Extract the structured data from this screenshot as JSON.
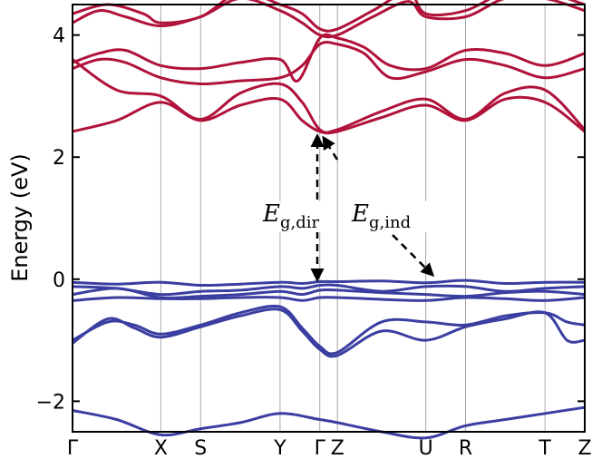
{
  "chart_data": {
    "type": "line",
    "title": "",
    "xlabel": "",
    "ylabel": "Energy (eV)",
    "ylim": [
      -2.5,
      4.5
    ],
    "yticks": [
      -2,
      0,
      2,
      4
    ],
    "ytick_labels": [
      "−2",
      "0",
      "2",
      "4"
    ],
    "kpath": [
      "Γ",
      "X",
      "S",
      "Y",
      "Γ",
      "Z",
      "U",
      "R",
      "T",
      "Z"
    ],
    "kpath_positions": [
      0.0,
      1.0,
      1.45,
      2.35,
      2.8,
      3.0,
      4.0,
      4.45,
      5.35,
      5.8
    ],
    "colors": {
      "conduction": "#b0123a",
      "valence": "#3a3ea0",
      "gridline": "#a8a8a8"
    },
    "series": [
      {
        "band": "conduction",
        "x": [
          0,
          0.5,
          1.0,
          1.45,
          1.9,
          2.35,
          2.6,
          2.8,
          3.0,
          3.5,
          4.0,
          4.45,
          4.9,
          5.35,
          5.8
        ],
        "y": [
          2.42,
          2.6,
          2.9,
          2.6,
          2.85,
          2.95,
          2.6,
          2.42,
          2.42,
          2.65,
          2.85,
          2.6,
          2.95,
          2.9,
          2.42
        ]
      },
      {
        "band": "conduction",
        "x": [
          0,
          0.5,
          1.0,
          1.45,
          1.9,
          2.35,
          2.6,
          2.8,
          3.0,
          3.5,
          4.0,
          4.45,
          4.9,
          5.35,
          5.8
        ],
        "y": [
          3.6,
          3.1,
          3.0,
          2.62,
          3.05,
          3.2,
          2.9,
          2.45,
          2.45,
          2.75,
          2.95,
          2.62,
          3.05,
          3.1,
          2.45
        ]
      },
      {
        "band": "conduction",
        "x": [
          0,
          0.3,
          0.6,
          1.0,
          1.45,
          1.9,
          2.35,
          2.6,
          2.8,
          3.0,
          3.3,
          3.6,
          4.0,
          4.45,
          4.9,
          5.35,
          5.8
        ],
        "y": [
          3.45,
          3.6,
          3.55,
          3.3,
          3.2,
          3.25,
          3.3,
          3.5,
          3.85,
          3.85,
          3.7,
          3.3,
          3.4,
          3.6,
          3.5,
          3.3,
          3.45
        ]
      },
      {
        "band": "conduction",
        "x": [
          0,
          0.3,
          0.6,
          1.0,
          1.45,
          1.9,
          2.35,
          2.55,
          2.8,
          3.0,
          3.3,
          3.6,
          4.0,
          4.45,
          4.9,
          5.35,
          5.8
        ],
        "y": [
          3.55,
          3.7,
          3.75,
          3.5,
          3.45,
          3.55,
          3.6,
          3.25,
          3.95,
          3.95,
          3.8,
          3.5,
          3.45,
          3.75,
          3.7,
          3.5,
          3.7
        ]
      },
      {
        "band": "conduction",
        "x": [
          0,
          0.3,
          0.6,
          1.0,
          1.45,
          1.9,
          2.35,
          2.6,
          2.8,
          3.0,
          3.4,
          3.8,
          4.0,
          4.45,
          4.9,
          5.35,
          5.8
        ],
        "y": [
          4.2,
          4.4,
          4.3,
          4.15,
          4.3,
          4.6,
          4.4,
          4.2,
          4.0,
          4.0,
          4.3,
          4.55,
          4.3,
          4.3,
          4.6,
          4.6,
          4.4
        ]
      },
      {
        "band": "conduction",
        "x": [
          0,
          0.4,
          0.8,
          1.0,
          1.45,
          1.9,
          2.35,
          2.6,
          2.8,
          3.0,
          3.4,
          3.8,
          4.0,
          4.45,
          4.9,
          5.35,
          5.8
        ],
        "y": [
          4.35,
          4.5,
          4.35,
          4.2,
          4.3,
          4.7,
          4.5,
          4.35,
          4.1,
          4.1,
          4.4,
          4.7,
          4.35,
          4.4,
          4.7,
          4.7,
          4.5
        ]
      },
      {
        "band": "valence",
        "x": [
          0,
          0.5,
          1.0,
          1.45,
          1.9,
          2.35,
          2.6,
          2.8,
          3.0,
          3.5,
          4.0,
          4.45,
          4.9,
          5.35,
          5.8
        ],
        "y": [
          -0.05,
          -0.08,
          -0.05,
          -0.1,
          -0.08,
          -0.05,
          -0.07,
          -0.04,
          -0.04,
          -0.03,
          -0.06,
          -0.02,
          -0.07,
          -0.05,
          -0.05
        ]
      },
      {
        "band": "valence",
        "x": [
          0,
          0.5,
          1.0,
          1.45,
          1.9,
          2.35,
          2.6,
          2.8,
          3.0,
          3.5,
          4.0,
          4.45,
          4.9,
          5.35,
          5.8
        ],
        "y": [
          -0.12,
          -0.15,
          -0.25,
          -0.2,
          -0.18,
          -0.12,
          -0.15,
          -0.1,
          -0.1,
          -0.2,
          -0.12,
          -0.12,
          -0.2,
          -0.15,
          -0.12
        ]
      },
      {
        "band": "valence",
        "x": [
          0,
          0.5,
          1.0,
          1.45,
          1.9,
          2.35,
          2.6,
          2.8,
          3.0,
          3.5,
          4.0,
          4.45,
          4.9,
          5.35,
          5.8
        ],
        "y": [
          -0.25,
          -0.15,
          -0.3,
          -0.28,
          -0.25,
          -0.2,
          -0.25,
          -0.18,
          -0.18,
          -0.22,
          -0.25,
          -0.28,
          -0.22,
          -0.2,
          -0.25
        ]
      },
      {
        "band": "valence",
        "x": [
          0,
          0.5,
          1.0,
          1.45,
          1.9,
          2.35,
          2.6,
          2.8,
          3.0,
          3.5,
          4.0,
          4.45,
          4.9,
          5.35,
          5.8
        ],
        "y": [
          -0.35,
          -0.3,
          -0.32,
          -0.32,
          -0.3,
          -0.3,
          -0.35,
          -0.3,
          -0.3,
          -0.33,
          -0.35,
          -0.3,
          -0.32,
          -0.35,
          -0.3
        ]
      },
      {
        "band": "valence",
        "x": [
          0,
          0.4,
          0.7,
          1.0,
          1.45,
          1.9,
          2.35,
          2.6,
          2.8,
          3.0,
          3.5,
          4.0,
          4.45,
          4.9,
          5.35,
          5.6,
          5.8
        ],
        "y": [
          -1.0,
          -0.7,
          -0.75,
          -0.9,
          -0.75,
          -0.55,
          -0.45,
          -0.8,
          -1.1,
          -1.2,
          -0.7,
          -0.7,
          -0.75,
          -0.6,
          -0.55,
          -0.7,
          -0.75
        ]
      },
      {
        "band": "valence",
        "x": [
          0,
          0.4,
          0.7,
          1.0,
          1.45,
          1.9,
          2.35,
          2.6,
          2.8,
          3.0,
          3.5,
          4.0,
          4.45,
          4.9,
          5.35,
          5.6,
          5.8
        ],
        "y": [
          -1.05,
          -0.65,
          -0.8,
          -0.95,
          -0.78,
          -0.6,
          -0.5,
          -0.85,
          -1.15,
          -1.25,
          -0.85,
          -1.0,
          -0.78,
          -0.65,
          -0.55,
          -1.0,
          -1.0
        ]
      },
      {
        "band": "valence",
        "x": [
          0,
          0.5,
          1.0,
          1.45,
          1.9,
          2.35,
          2.8,
          3.0,
          3.5,
          4.0,
          4.45,
          4.9,
          5.35,
          5.8
        ],
        "y": [
          -2.15,
          -2.3,
          -2.55,
          -2.45,
          -2.35,
          -2.2,
          -2.3,
          -2.35,
          -2.5,
          -2.6,
          -2.4,
          -2.3,
          -2.2,
          -2.1
        ]
      }
    ],
    "annotations": [
      {
        "main": "E",
        "sub": "g,dir"
      },
      {
        "main": "E",
        "sub": "g,ind"
      }
    ]
  }
}
